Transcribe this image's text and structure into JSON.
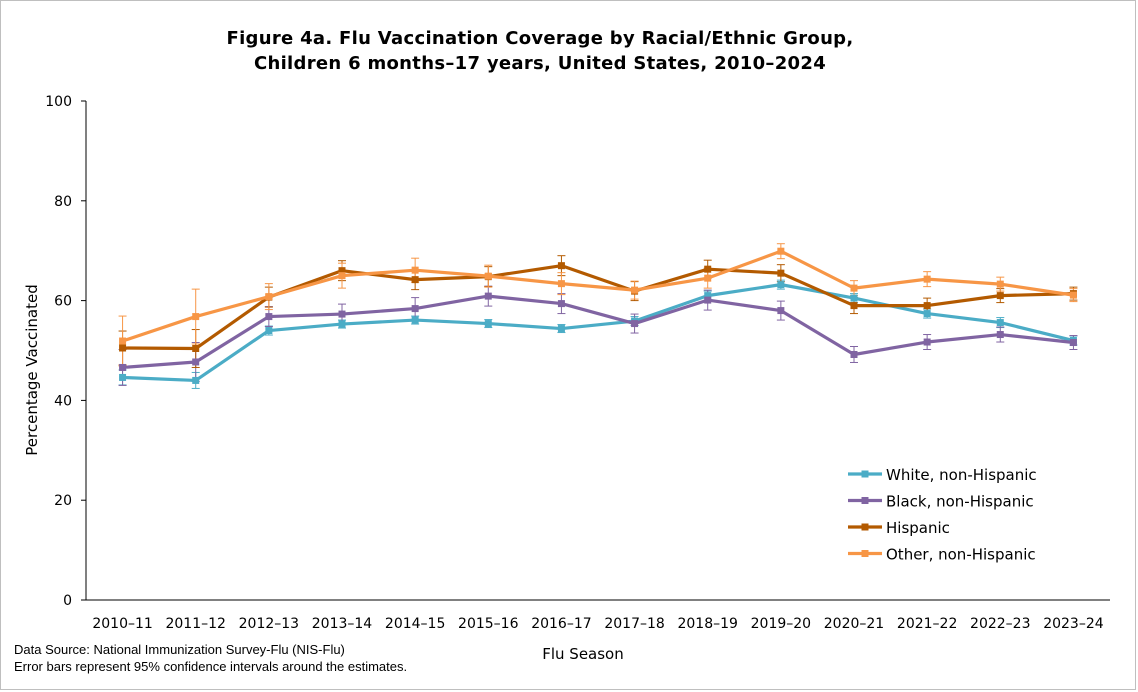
{
  "chart_data": {
    "type": "line",
    "title": [
      "Figure 4a. Flu Vaccination Coverage by Racial/Ethnic Group,",
      "Children 6 months–17 years, United States, 2010–2024"
    ],
    "xlabel": "Flu Season",
    "ylabel": "Percentage Vaccinated",
    "ylim": [
      0,
      100
    ],
    "yticks": [
      0,
      20,
      40,
      60,
      80,
      100
    ],
    "categories": [
      "2010–11",
      "2011–12",
      "2012–13",
      "2013–14",
      "2014–15",
      "2015–16",
      "2016–17",
      "2017–18",
      "2018–19",
      "2019–20",
      "2020–21",
      "2021–22",
      "2022–23",
      "2023–24"
    ],
    "legend_position": "bottom-right",
    "error_bars": "95% confidence intervals",
    "series": [
      {
        "name": "White, non-Hispanic",
        "color": "#4bacc6",
        "values": [
          44.6,
          44.0,
          54.0,
          55.3,
          56.1,
          55.4,
          54.4,
          55.9,
          61.0,
          63.2,
          60.5,
          57.4,
          55.6,
          52.0
        ],
        "err": [
          1.5,
          1.6,
          0.9,
          0.8,
          0.8,
          0.8,
          0.8,
          0.9,
          0.9,
          0.9,
          0.9,
          0.9,
          1.0,
          0.9
        ]
      },
      {
        "name": "Black, non-Hispanic",
        "color": "#8064a2",
        "values": [
          46.6,
          47.7,
          56.8,
          57.3,
          58.4,
          60.9,
          59.4,
          55.4,
          60.1,
          58.0,
          49.2,
          51.7,
          53.2,
          51.6
        ],
        "err": [
          3.6,
          3.9,
          2.0,
          2.0,
          2.2,
          2.0,
          2.0,
          1.9,
          2.0,
          1.9,
          1.6,
          1.5,
          1.5,
          1.4
        ]
      },
      {
        "name": "Hispanic",
        "color": "#b35a00",
        "values": [
          50.5,
          50.4,
          60.7,
          66.0,
          64.2,
          64.8,
          67.0,
          61.9,
          66.3,
          65.5,
          59.0,
          59.0,
          61.0,
          61.4
        ],
        "err": [
          3.4,
          3.8,
          2.0,
          2.0,
          2.0,
          2.0,
          2.0,
          1.9,
          1.8,
          1.7,
          1.6,
          1.5,
          1.4,
          1.3
        ]
      },
      {
        "name": "Other, non-Hispanic",
        "color": "#f79646",
        "values": [
          51.9,
          56.8,
          60.8,
          65.0,
          66.1,
          64.9,
          63.4,
          62.1,
          64.5,
          69.9,
          62.5,
          64.3,
          63.3,
          61.1
        ],
        "err": [
          5.0,
          5.5,
          2.6,
          2.5,
          2.4,
          2.2,
          2.2,
          1.8,
          2.0,
          1.5,
          1.5,
          1.5,
          1.4,
          1.3
        ]
      }
    ]
  },
  "footer": {
    "source": "Data Source: National Immunization Survey-Flu (NIS-Flu)",
    "note": "Error bars represent 95% confidence intervals around the estimates."
  }
}
